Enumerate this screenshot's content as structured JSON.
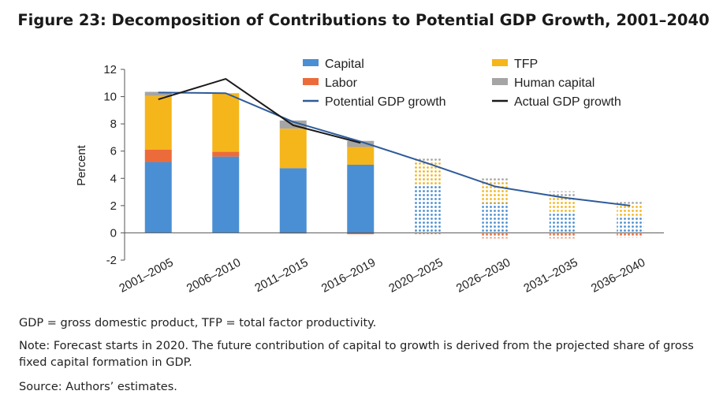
{
  "title": "Figure 23: Decomposition of Contributions to Potential GDP Growth, 2001–2040",
  "notes": {
    "abbrev": "GDP = gross domestic product, TFP = total factor productivity.",
    "note": "Note: Forecast starts in 2020. The future contribution of capital to growth is derived from the projected share of gross fixed capital formation in GDP.",
    "source": "Source: Authors’ estimates."
  },
  "chart_data": {
    "type": "bar",
    "stacked": true,
    "ylabel": "Percent",
    "ylim": [
      -2,
      12
    ],
    "yticks": [
      -2,
      0,
      2,
      4,
      6,
      8,
      10,
      12
    ],
    "grid": false,
    "legend_position": "top",
    "forecast_start_index": 4,
    "categories": [
      "2001–2005",
      "2006–2010",
      "2011–2015",
      "2016–2019",
      "2020–2025",
      "2026–2030",
      "2031–2035",
      "2036–2040"
    ],
    "series": [
      {
        "name": "Capital",
        "kind": "bar",
        "color": "#4a8fd3",
        "values": [
          5.2,
          5.6,
          4.75,
          5.0,
          3.5,
          2.2,
          1.4,
          1.1
        ]
      },
      {
        "name": "Labor",
        "kind": "bar",
        "color": "#ec6b3b",
        "values": [
          0.9,
          0.35,
          -0.05,
          -0.1,
          -0.1,
          -0.4,
          -0.4,
          -0.35
        ]
      },
      {
        "name": "TFP",
        "kind": "bar",
        "color": "#f5b61c",
        "values": [
          3.95,
          4.3,
          2.9,
          1.3,
          1.7,
          1.5,
          1.2,
          1.05
        ]
      },
      {
        "name": "Human capital",
        "kind": "bar",
        "color": "#a5a5a5",
        "values": [
          0.3,
          0.0,
          0.6,
          0.45,
          0.25,
          0.3,
          0.45,
          0.25
        ]
      },
      {
        "name": "Potential GDP growth",
        "kind": "line",
        "color": "#2e5b9a",
        "values": [
          10.3,
          10.25,
          8.15,
          6.7,
          5.1,
          3.4,
          2.6,
          2.0
        ]
      },
      {
        "name": "Actual GDP growth",
        "kind": "line",
        "color": "#1a1a1a",
        "values": [
          9.8,
          11.3,
          7.9,
          6.6,
          null,
          null,
          null,
          null
        ]
      }
    ],
    "legend_order": [
      "Capital",
      "TFP",
      "Labor",
      "Human capital",
      "Potential GDP growth",
      "Actual GDP growth"
    ]
  }
}
